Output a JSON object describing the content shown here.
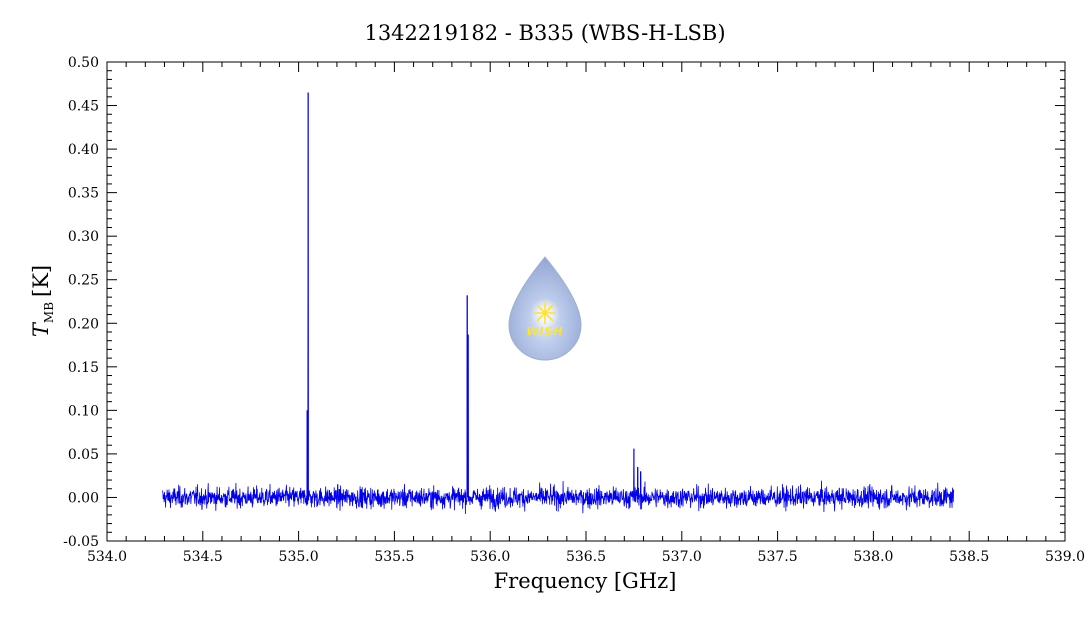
{
  "chart_data": {
    "type": "line",
    "title": "1342219182 - B335 (WBS-H-LSB)",
    "xlabel": "Frequency [GHz]",
    "ylabel_symbol": "T",
    "ylabel_subscript": "MB",
    "ylabel_unit": "[K]",
    "xlim": [
      534.0,
      539.0
    ],
    "ylim": [
      -0.05,
      0.5
    ],
    "x_ticks": [
      "534.0",
      "534.5",
      "535.0",
      "535.5",
      "536.0",
      "536.5",
      "537.0",
      "537.5",
      "538.0",
      "538.5",
      "539.0"
    ],
    "y_ticks": [
      "-0.05",
      "0.00",
      "0.05",
      "0.10",
      "0.15",
      "0.20",
      "0.25",
      "0.30",
      "0.35",
      "0.40",
      "0.45",
      "0.50"
    ],
    "grid": false,
    "series": [
      {
        "color": "#0000ee",
        "x_range": [
          534.29,
          538.42
        ],
        "baseline": 0.0,
        "noise_rms": 0.006,
        "peaks": [
          {
            "x": 535.05,
            "y": 0.465
          },
          {
            "x": 535.045,
            "y": 0.1
          },
          {
            "x": 535.88,
            "y": 0.232
          },
          {
            "x": 535.885,
            "y": 0.187
          },
          {
            "x": 536.75,
            "y": 0.056
          },
          {
            "x": 536.77,
            "y": 0.035
          },
          {
            "x": 536.785,
            "y": 0.03
          }
        ]
      }
    ]
  },
  "logo": {
    "text": "WISH",
    "color_drop": "#9fb2d9",
    "color_star": "#ffe000"
  }
}
